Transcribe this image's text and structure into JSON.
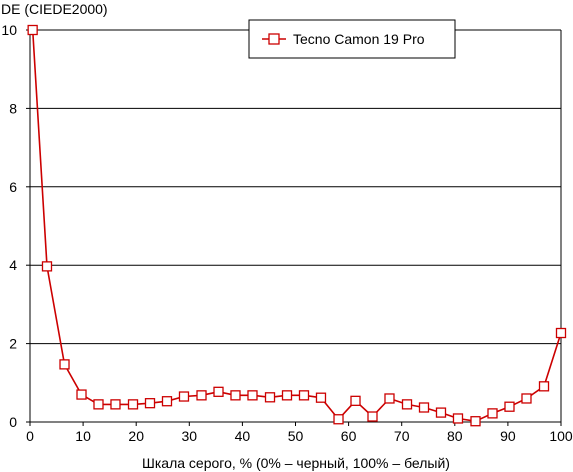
{
  "chart_data": {
    "type": "line",
    "title": "",
    "ylabel": "DE (CIEDE2000)",
    "xlabel": "Шкала серого, % (0% – черный, 100% – белый)",
    "xlim": [
      0,
      100
    ],
    "ylim": [
      0,
      10
    ],
    "x_ticks": [
      0,
      10,
      20,
      30,
      40,
      50,
      60,
      70,
      80,
      90,
      100
    ],
    "y_ticks": [
      0,
      2,
      4,
      6,
      8,
      10
    ],
    "grid": "horizontal",
    "legend_position": "top-right",
    "series": [
      {
        "name": "Tecno Camon 19 Pro",
        "color": "#cc0000",
        "marker": "hollow-square",
        "x": [
          0.5,
          3.2,
          6.5,
          9.7,
          12.9,
          16.1,
          19.4,
          22.6,
          25.8,
          29.0,
          32.3,
          35.5,
          38.7,
          41.9,
          45.2,
          48.4,
          51.6,
          54.8,
          58.1,
          61.3,
          64.5,
          67.7,
          71.0,
          74.2,
          77.4,
          80.6,
          83.9,
          87.1,
          90.3,
          93.5,
          96.8,
          100
        ],
        "y": [
          10.0,
          3.97,
          1.47,
          0.7,
          0.45,
          0.45,
          0.45,
          0.48,
          0.53,
          0.65,
          0.68,
          0.77,
          0.68,
          0.68,
          0.63,
          0.68,
          0.68,
          0.62,
          0.07,
          0.54,
          0.14,
          0.6,
          0.45,
          0.37,
          0.24,
          0.09,
          0.02,
          0.22,
          0.39,
          0.6,
          0.91,
          2.27
        ]
      }
    ]
  }
}
